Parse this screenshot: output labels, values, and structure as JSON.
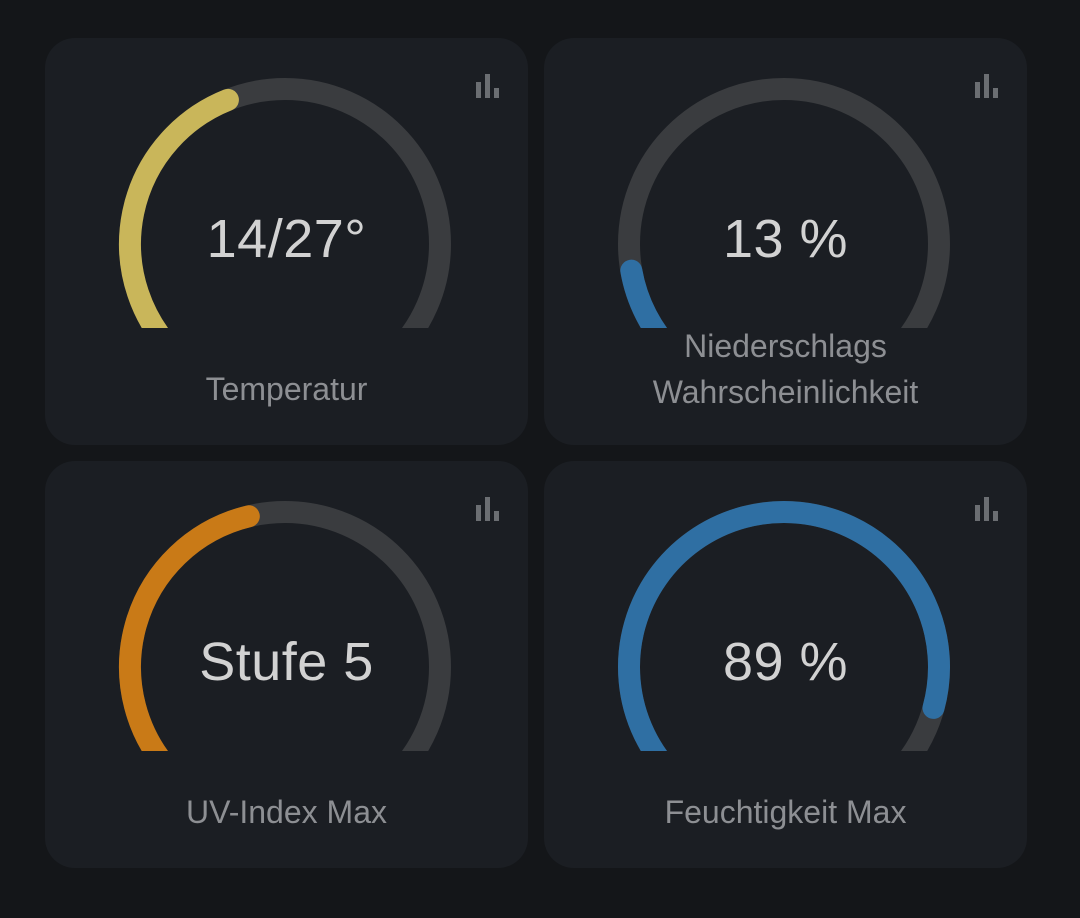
{
  "cards": [
    {
      "id": "temperature",
      "value": "14/27°",
      "label_lines": [
        "Temperatur"
      ],
      "fill_fraction": 0.42,
      "color": "#c9b65a",
      "icon": "bar-chart-icon"
    },
    {
      "id": "precipitation",
      "value": "13 %",
      "label_lines": [
        "Niederschlags",
        "Wahrscheinlichkeit"
      ],
      "fill_fraction": 0.13,
      "color": "#2f6fa3",
      "icon": "bar-chart-icon"
    },
    {
      "id": "uv-index",
      "value": "Stufe 5",
      "label_lines": [
        "UV-Index Max"
      ],
      "fill_fraction": 0.45,
      "color": "#c97a17",
      "icon": "bar-chart-icon"
    },
    {
      "id": "humidity",
      "value": "89 %",
      "label_lines": [
        "Feuchtigkeit Max"
      ],
      "fill_fraction": 0.89,
      "color": "#2f6fa3",
      "icon": "bar-chart-icon"
    }
  ],
  "colors": {
    "background": "#141619",
    "card": "#1b1e23",
    "track": "#3a3c3f",
    "value_text": "#d2d2d2",
    "label_text": "#8d8f93",
    "icon": "#6b6e72"
  }
}
